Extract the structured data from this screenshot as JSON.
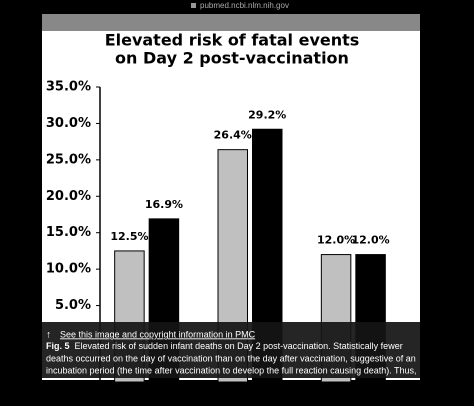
{
  "browser": {
    "url": "pubmed.ncbi.nlm.nih.gov"
  },
  "chart_data": {
    "type": "bar",
    "title": [
      "Elevated risk of fatal events",
      "on Day 2 post-vaccination"
    ],
    "categories": [
      null,
      null,
      null
    ],
    "series": [
      {
        "color": "#c0c0c0",
        "values": [
          12.5,
          26.4,
          12.0
        ],
        "value_labels": [
          "12.5%",
          "26.4%",
          "12.0%"
        ]
      },
      {
        "color": "#000000",
        "values": [
          16.9,
          29.2,
          12.0
        ],
        "value_labels": [
          "16.9%",
          "29.2%",
          "12.0%"
        ]
      }
    ],
    "ylim": [
      0,
      35
    ],
    "yticks": [
      {
        "value": 5,
        "label": "5.0%"
      },
      {
        "value": 10,
        "label": "10.0%"
      },
      {
        "value": 15,
        "label": "15.0%"
      },
      {
        "value": 20,
        "label": "20.0%"
      },
      {
        "value": 25,
        "label": "25.0%"
      },
      {
        "value": 30,
        "label": "30.0%"
      },
      {
        "value": 35,
        "label": "35.0%"
      }
    ]
  },
  "caption": {
    "link": "See this image and copyright information in PMC",
    "label": "Fig. 5",
    "lines": [
      "Elevated risk of sudden infant deaths on Day 2 post-vaccination. Statistically fewer",
      "deaths occurred on the day of vaccination than on the day after vaccination, suggestive of an",
      "incubation period (the time after vaccination to develop the full reaction causing death). Thus,"
    ]
  }
}
